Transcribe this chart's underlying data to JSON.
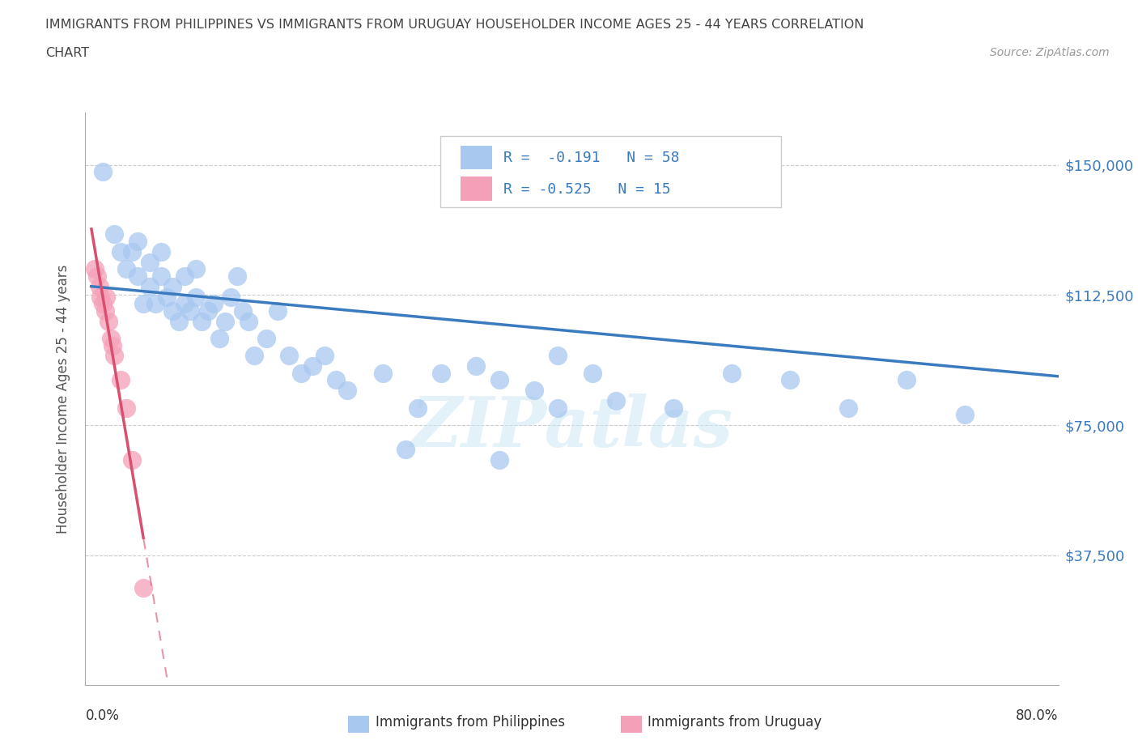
{
  "title_line1": "IMMIGRANTS FROM PHILIPPINES VS IMMIGRANTS FROM URUGUAY HOUSEHOLDER INCOME AGES 25 - 44 YEARS CORRELATION",
  "title_line2": "CHART",
  "source_text": "Source: ZipAtlas.com",
  "ylabel": "Householder Income Ages 25 - 44 years",
  "watermark": "ZIPatlas",
  "ytick_labels": [
    "$37,500",
    "$75,000",
    "$112,500",
    "$150,000"
  ],
  "ytick_values": [
    37500,
    75000,
    112500,
    150000
  ],
  "ymin": 0,
  "ymax": 165000,
  "xmin": -0.005,
  "xmax": 0.83,
  "legend_r1": "R =  -0.191   N = 58",
  "legend_r2": "R = -0.525   N = 15",
  "legend_label1": "Immigrants from Philippines",
  "legend_label2": "Immigrants from Uruguay",
  "philippines_color": "#a8c8f0",
  "uruguay_color": "#f4a0b8",
  "trendline_philippines_color": "#3a7abf",
  "trendline_uruguay_color": "#d94f6e",
  "right_label_color": "#3a7abf",
  "title_color": "#444444",
  "philippines_x": [
    0.01,
    0.02,
    0.025,
    0.03,
    0.035,
    0.04,
    0.04,
    0.045,
    0.05,
    0.05,
    0.055,
    0.06,
    0.06,
    0.065,
    0.07,
    0.07,
    0.075,
    0.08,
    0.08,
    0.085,
    0.09,
    0.09,
    0.095,
    0.1,
    0.105,
    0.11,
    0.115,
    0.12,
    0.125,
    0.13,
    0.135,
    0.14,
    0.15,
    0.16,
    0.17,
    0.18,
    0.19,
    0.2,
    0.21,
    0.22,
    0.25,
    0.27,
    0.3,
    0.33,
    0.35,
    0.38,
    0.4,
    0.43,
    0.5,
    0.55,
    0.6,
    0.65,
    0.7,
    0.75,
    0.4,
    0.45,
    0.35,
    0.28
  ],
  "philippines_y": [
    148000,
    130000,
    125000,
    120000,
    125000,
    118000,
    128000,
    110000,
    115000,
    122000,
    110000,
    125000,
    118000,
    112000,
    108000,
    115000,
    105000,
    110000,
    118000,
    108000,
    112000,
    120000,
    105000,
    108000,
    110000,
    100000,
    105000,
    112000,
    118000,
    108000,
    105000,
    95000,
    100000,
    108000,
    95000,
    90000,
    92000,
    95000,
    88000,
    85000,
    90000,
    68000,
    90000,
    92000,
    88000,
    85000,
    80000,
    90000,
    80000,
    90000,
    88000,
    80000,
    88000,
    78000,
    95000,
    82000,
    65000,
    80000
  ],
  "uruguay_x": [
    0.003,
    0.005,
    0.007,
    0.008,
    0.01,
    0.012,
    0.013,
    0.015,
    0.017,
    0.018,
    0.02,
    0.025,
    0.03,
    0.035,
    0.045
  ],
  "uruguay_y": [
    120000,
    118000,
    115000,
    112000,
    110000,
    108000,
    112000,
    105000,
    100000,
    98000,
    95000,
    88000,
    80000,
    65000,
    28000
  ],
  "trendline_uruguay_solid_end": 0.045,
  "trendline_uruguay_dash_end": 0.22
}
